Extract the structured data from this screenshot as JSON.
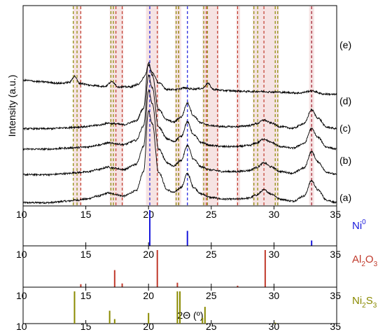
{
  "chart_data": [
    {
      "type": "line",
      "ylabel": "Intensity (a.u.)",
      "xlim": [
        10,
        35
      ],
      "y_ticks_shown": false,
      "series": [
        {
          "name": "(a)",
          "baseline": 0.0,
          "amp": 1.0,
          "x": [
            10,
            12,
            13.5,
            14.2,
            15,
            16,
            16.8,
            17.2,
            18,
            19,
            19.6,
            20,
            20.3,
            20.8,
            21.5,
            22,
            22.6,
            23.1,
            23.6,
            24.2,
            25,
            26,
            27,
            28,
            28.6,
            29.2,
            29.8,
            30.5,
            31.5,
            32.4,
            33,
            33.5,
            34.2,
            35
          ],
          "y": [
            0.05,
            0.05,
            0.08,
            0.1,
            0.12,
            0.18,
            0.24,
            0.22,
            0.18,
            0.28,
            0.65,
            1.85,
            1.6,
            0.65,
            0.3,
            0.25,
            0.35,
            0.62,
            0.35,
            0.22,
            0.15,
            0.12,
            0.12,
            0.14,
            0.2,
            0.3,
            0.22,
            0.12,
            0.08,
            0.18,
            0.48,
            0.3,
            0.1,
            0.05
          ]
        },
        {
          "name": "(b)",
          "baseline": 0.55,
          "amp": 1.0,
          "x": [
            10,
            12,
            13.5,
            14.2,
            15,
            16,
            16.8,
            17.2,
            18,
            19,
            19.6,
            20,
            20.3,
            20.8,
            21.5,
            22,
            22.6,
            23.1,
            23.6,
            24.2,
            25,
            26,
            27,
            28,
            28.6,
            29.2,
            29.8,
            30.5,
            31.5,
            32.4,
            33,
            33.5,
            34.2,
            35
          ],
          "y": [
            0.05,
            0.05,
            0.07,
            0.09,
            0.1,
            0.15,
            0.2,
            0.18,
            0.15,
            0.25,
            0.6,
            1.7,
            1.45,
            0.55,
            0.28,
            0.22,
            0.33,
            0.62,
            0.35,
            0.2,
            0.14,
            0.11,
            0.11,
            0.13,
            0.19,
            0.28,
            0.2,
            0.11,
            0.08,
            0.18,
            0.5,
            0.3,
            0.1,
            0.05
          ]
        },
        {
          "name": "(c)",
          "baseline": 1.05,
          "amp": 1.0,
          "x": [
            10,
            12,
            13.5,
            14.2,
            15,
            16,
            16.8,
            17.2,
            18,
            19,
            19.6,
            20,
            20.3,
            20.8,
            21.5,
            22,
            22.6,
            23.1,
            23.6,
            24.2,
            25,
            26,
            27,
            28,
            28.6,
            29.2,
            29.8,
            30.5,
            31.5,
            32.4,
            33,
            33.5,
            34.2,
            35
          ],
          "y": [
            0.05,
            0.05,
            0.07,
            0.08,
            0.09,
            0.13,
            0.17,
            0.16,
            0.14,
            0.22,
            0.5,
            1.5,
            1.25,
            0.48,
            0.25,
            0.2,
            0.3,
            0.58,
            0.33,
            0.18,
            0.12,
            0.1,
            0.1,
            0.12,
            0.17,
            0.25,
            0.18,
            0.1,
            0.07,
            0.16,
            0.45,
            0.28,
            0.09,
            0.05
          ]
        },
        {
          "name": "(d)",
          "baseline": 1.45,
          "amp": 1.0,
          "x": [
            10,
            12,
            13.5,
            14.2,
            15,
            16,
            16.8,
            17.2,
            18,
            19,
            19.6,
            20,
            20.3,
            20.8,
            21.5,
            22,
            22.6,
            23.1,
            23.6,
            24.2,
            25,
            26,
            27,
            28,
            28.6,
            29.2,
            29.8,
            30.5,
            31.5,
            32.4,
            33,
            33.5,
            34.2,
            35
          ],
          "y": [
            0.05,
            0.05,
            0.07,
            0.08,
            0.09,
            0.12,
            0.16,
            0.15,
            0.13,
            0.2,
            0.45,
            1.35,
            1.1,
            0.42,
            0.22,
            0.18,
            0.28,
            0.55,
            0.3,
            0.16,
            0.11,
            0.09,
            0.09,
            0.11,
            0.15,
            0.22,
            0.16,
            0.09,
            0.06,
            0.15,
            0.42,
            0.26,
            0.08,
            0.05
          ]
        },
        {
          "name": "(e)",
          "baseline": 2.15,
          "amp": 1.0,
          "x": [
            10,
            11.5,
            13,
            13.7,
            14.1,
            14.5,
            15.5,
            16.5,
            17.1,
            17.6,
            18.5,
            19.2,
            19.7,
            20,
            20.3,
            20.8,
            21.5,
            22.3,
            22.8,
            23.5,
            24.3,
            24.7,
            25.2,
            26,
            27,
            28,
            29,
            30,
            31,
            32,
            33,
            34,
            35
          ],
          "y": [
            0.3,
            0.27,
            0.24,
            0.26,
            0.38,
            0.24,
            0.2,
            0.18,
            0.27,
            0.17,
            0.17,
            0.22,
            0.38,
            0.6,
            0.45,
            0.25,
            0.12,
            0.12,
            0.15,
            0.13,
            0.14,
            0.24,
            0.12,
            0.1,
            0.09,
            0.08,
            0.08,
            0.07,
            0.06,
            0.05,
            0.09,
            0.03,
            0.02
          ]
        }
      ],
      "reference_lines": [
        {
          "name": "Ni0",
          "color": "#1a1adc",
          "x": [
            20.1,
            23.1,
            33.0
          ]
        },
        {
          "name": "Al2O3",
          "color": "#c0392b",
          "x": [
            14.6,
            17.4,
            17.9,
            20.7,
            22.4,
            24.6,
            25.5,
            27.1,
            29.2,
            33.0
          ]
        },
        {
          "name": "Ni2S3",
          "color": "#8a8a00",
          "x": [
            14.0,
            14.3,
            17.0,
            17.2,
            22.2,
            22.4,
            24.4,
            24.7,
            28.4,
            28.7,
            30.1,
            30.3
          ]
        }
      ],
      "highlight_bands": [
        {
          "x": [
            14.0,
            14.6
          ],
          "color": "#f6e3e3"
        },
        {
          "x": [
            16.9,
            18.0
          ],
          "color": "#f6e3e3"
        },
        {
          "x": [
            19.8,
            20.8
          ],
          "color": "#f6e3e3"
        },
        {
          "x": [
            22.1,
            22.6
          ],
          "color": "#f6e3e3"
        },
        {
          "x": [
            24.3,
            25.6
          ],
          "color": "#f6e3e3"
        },
        {
          "x": [
            27.0,
            27.3
          ],
          "color": "#f6e3e3"
        },
        {
          "x": [
            28.3,
            30.4
          ],
          "color": "#f6e3e3"
        },
        {
          "x": [
            32.8,
            33.2
          ],
          "color": "#f6e3e3"
        }
      ],
      "labels": [
        "(a)",
        "(b)",
        "(c)",
        "(d)",
        "(e)"
      ]
    },
    {
      "type": "bar",
      "name": "Ni0",
      "legend_label": {
        "main": "Ni",
        "sup": "0"
      },
      "color": "#1a1adc",
      "xlim": [
        10,
        35
      ],
      "x_ticks": [
        10,
        15,
        20,
        25,
        30,
        35
      ],
      "x": [
        20.1,
        23.1,
        33.0
      ],
      "values": [
        100,
        42,
        15
      ]
    },
    {
      "type": "bar",
      "name": "Al2O3",
      "legend_label": {
        "main": "Al",
        "sub1": "2",
        "mid": "O",
        "sub2": "3"
      },
      "color": "#c0392b",
      "xlim": [
        10,
        35
      ],
      "x_ticks": [
        10,
        15,
        20,
        25,
        30,
        35
      ],
      "x": [
        14.6,
        17.3,
        17.9,
        20.7,
        22.3,
        27.1,
        29.3
      ],
      "values": [
        8,
        46,
        10,
        100,
        12,
        4,
        100
      ]
    },
    {
      "type": "bar",
      "name": "Ni2S3",
      "legend_label": {
        "main": "Ni",
        "sub1": "2",
        "mid": "S",
        "sub2": "3"
      },
      "color": "#8a8a00",
      "xlim": [
        10,
        35
      ],
      "x_ticks": [
        10,
        15,
        20,
        25,
        30,
        35
      ],
      "xlabel": "2Θ (º)",
      "x": [
        14.1,
        16.9,
        17.3,
        20.0,
        22.3,
        22.5,
        24.3,
        24.5,
        30.1
      ],
      "values": [
        100,
        40,
        14,
        33,
        100,
        100,
        18,
        52,
        3
      ]
    }
  ]
}
